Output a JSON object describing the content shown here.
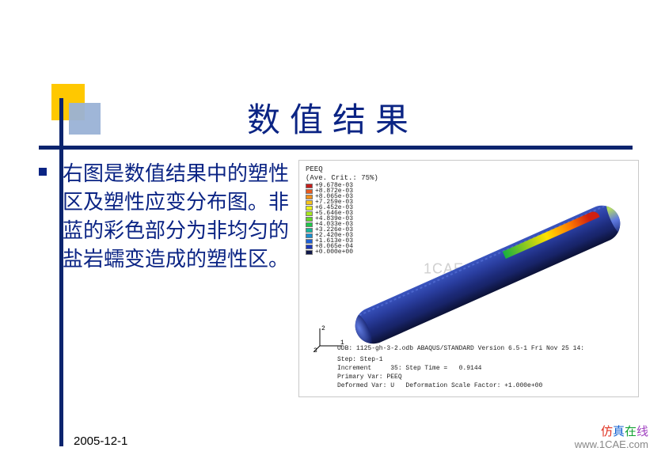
{
  "title": "数值结果",
  "bullet": "右图是数值结果中的塑性区及塑性应变分布图。非蓝的彩色部分为非均匀的盐岩蠕变造成的塑性区。",
  "footer_date": "2005-12-1",
  "footer_brand": {
    "c1": "仿",
    "c2": "真",
    "c3": "在",
    "c4": "线"
  },
  "footer_url": "www.1CAE.com",
  "watermark": "1CAE . COM",
  "figure": {
    "legend_title": "PEEQ",
    "legend_sub": "(Ave. Crit.: 75%)",
    "levels": [
      {
        "label": "+9.678e-03",
        "color": "#c41e1c"
      },
      {
        "label": "+8.872e-03",
        "color": "#e85a1f"
      },
      {
        "label": "+8.065e-03",
        "color": "#f0901b"
      },
      {
        "label": "+7.259e-03",
        "color": "#f5c21a"
      },
      {
        "label": "+6.452e-03",
        "color": "#e9f01a"
      },
      {
        "label": "+5.646e-03",
        "color": "#a6e81d"
      },
      {
        "label": "+4.839e-03",
        "color": "#5fd628"
      },
      {
        "label": "+4.033e-03",
        "color": "#1fc74a"
      },
      {
        "label": "+3.226e-03",
        "color": "#18b49a"
      },
      {
        "label": "+2.420e-03",
        "color": "#1a8fd0"
      },
      {
        "label": "+1.613e-03",
        "color": "#1d60d6"
      },
      {
        "label": "+8.065e-04",
        "color": "#1b38b8"
      },
      {
        "label": "+0.000e+00",
        "color": "#10184a"
      }
    ],
    "odb_line": "ODB: 1125-gh-3-2.odb   ABAQUS/STANDARD Version 6.5-1   Fri Nov 25 14:",
    "block": "Step: Step-1\nIncrement     35: Step Time =   0.9144\nPrimary Var: PEEQ\nDeformed Var: U   Deformation Scale Factor: +1.000e+00",
    "axes": {
      "x": "1",
      "y": "2",
      "z": "3"
    }
  }
}
